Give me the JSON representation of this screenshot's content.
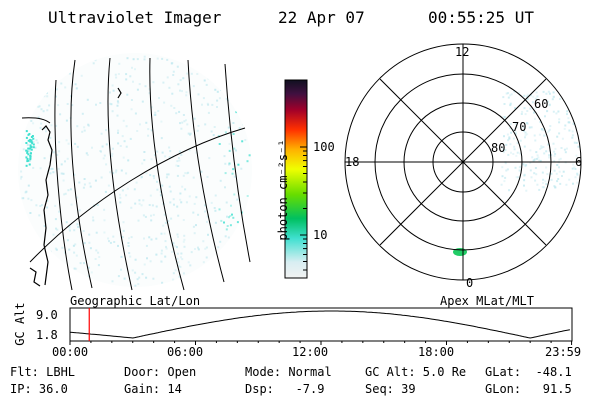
{
  "header": {
    "instrument": "Ultraviolet Imager",
    "date": "22 Apr 07",
    "time": "00:55:25 UT"
  },
  "colorbar": {
    "unit_label": "photon cm⁻²s⁻¹",
    "ticks": [
      "100",
      "10"
    ],
    "scale": "log"
  },
  "polar_plot": {
    "hour_labels": [
      "12",
      "18",
      "6",
      "0"
    ],
    "lat_labels": [
      "60",
      "70",
      "80"
    ],
    "caption": "Apex MLat/MLT"
  },
  "geo_plot": {
    "caption": "Geographic Lat/Lon"
  },
  "altitude_plot": {
    "ylabel": "GC Alt",
    "y_ticks": [
      "9.0",
      "1.8"
    ],
    "x_ticks": [
      "00:00",
      "06:00",
      "12:00",
      "18:00",
      "23:59"
    ],
    "current_time_hours": 0.92
  },
  "status": {
    "flt": "Flt: LBHL",
    "ip": "IP: 36.0",
    "door": "Door: Open",
    "gain": "Gain: 14",
    "mode": "Mode: Normal",
    "dsp": "Dsp:   -7.9",
    "gc_alt": "GC Alt: 5.0 Re",
    "seq": "Seq: 39",
    "glat": "GLat:  -48.1",
    "glon": "GLon:   91.5"
  },
  "colors": {
    "background": "#ffffff",
    "foreground": "#000000",
    "emission_low": "#bfe8ef",
    "emission_mid": "#40e0d0",
    "time_marker": "#ff0000"
  }
}
